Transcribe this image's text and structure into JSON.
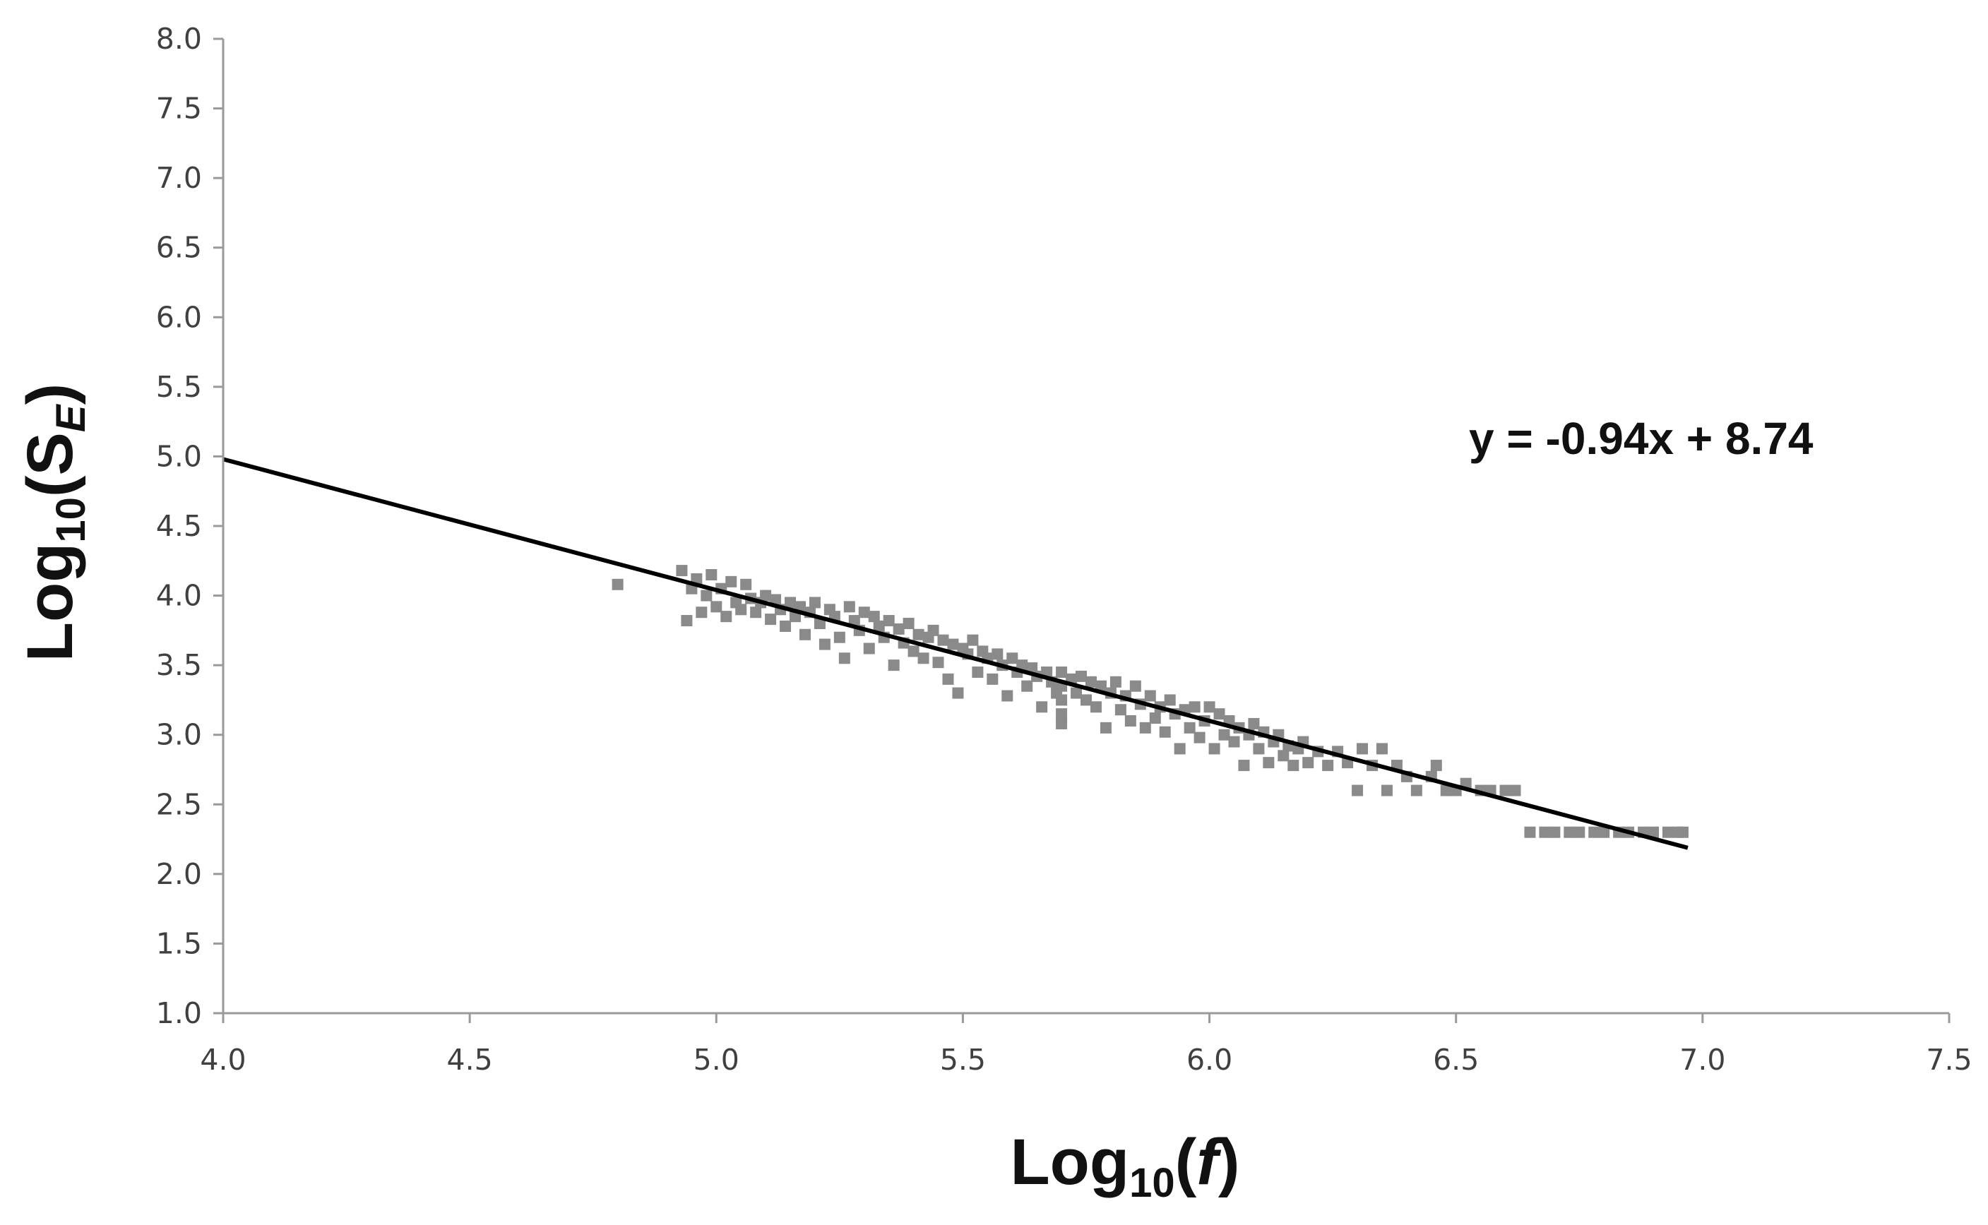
{
  "chart_data": {
    "type": "scatter",
    "xlabel": {
      "prefix": "Log",
      "sub": "10",
      "open": "(",
      "var": "f",
      "close": ")"
    },
    "ylabel": {
      "prefix": "Log",
      "sub": "10",
      "open": "(S",
      "var_sub": "E",
      "close": ")"
    },
    "xlim": [
      4.0,
      7.5
    ],
    "ylim": [
      1.0,
      8.0
    ],
    "xticks": [
      "4.0",
      "4.5",
      "5.0",
      "5.5",
      "6.0",
      "6.5",
      "7.0",
      "7.5"
    ],
    "yticks": [
      "1.0",
      "1.5",
      "2.0",
      "2.5",
      "3.0",
      "3.5",
      "4.0",
      "4.5",
      "5.0",
      "5.5",
      "6.0",
      "6.5",
      "7.0",
      "7.5",
      "8.0"
    ],
    "grid": false,
    "trendline": {
      "slope": -0.94,
      "intercept": 8.74,
      "x_range": [
        4.0,
        6.97
      ],
      "equation": "y = -0.94x + 8.74"
    },
    "colors": {
      "points": "#8a8a8a",
      "line": "#000000",
      "axis": "#9a9a9a"
    },
    "points": [
      [
        4.8,
        4.08
      ],
      [
        4.93,
        4.18
      ],
      [
        4.94,
        3.82
      ],
      [
        4.95,
        4.05
      ],
      [
        4.96,
        4.12
      ],
      [
        4.97,
        3.88
      ],
      [
        4.98,
        4.0
      ],
      [
        4.99,
        4.15
      ],
      [
        5.0,
        3.92
      ],
      [
        5.01,
        4.05
      ],
      [
        5.02,
        3.85
      ],
      [
        5.03,
        4.1
      ],
      [
        5.04,
        3.95
      ],
      [
        5.05,
        3.9
      ],
      [
        5.06,
        4.08
      ],
      [
        5.07,
        3.98
      ],
      [
        5.08,
        3.88
      ],
      [
        5.09,
        3.95
      ],
      [
        5.1,
        4.0
      ],
      [
        5.11,
        3.83
      ],
      [
        5.12,
        3.97
      ],
      [
        5.13,
        3.9
      ],
      [
        5.14,
        3.78
      ],
      [
        5.15,
        3.95
      ],
      [
        5.16,
        3.85
      ],
      [
        5.17,
        3.92
      ],
      [
        5.18,
        3.72
      ],
      [
        5.19,
        3.88
      ],
      [
        5.2,
        3.95
      ],
      [
        5.21,
        3.8
      ],
      [
        5.22,
        3.65
      ],
      [
        5.23,
        3.9
      ],
      [
        5.24,
        3.85
      ],
      [
        5.25,
        3.7
      ],
      [
        5.26,
        3.55
      ],
      [
        5.27,
        3.92
      ],
      [
        5.28,
        3.82
      ],
      [
        5.29,
        3.75
      ],
      [
        5.3,
        3.88
      ],
      [
        5.31,
        3.62
      ],
      [
        5.32,
        3.85
      ],
      [
        5.33,
        3.78
      ],
      [
        5.34,
        3.7
      ],
      [
        5.35,
        3.82
      ],
      [
        5.36,
        3.5
      ],
      [
        5.37,
        3.76
      ],
      [
        5.38,
        3.66
      ],
      [
        5.39,
        3.8
      ],
      [
        5.4,
        3.6
      ],
      [
        5.41,
        3.72
      ],
      [
        5.42,
        3.55
      ],
      [
        5.43,
        3.7
      ],
      [
        5.44,
        3.75
      ],
      [
        5.45,
        3.52
      ],
      [
        5.46,
        3.68
      ],
      [
        5.47,
        3.4
      ],
      [
        5.48,
        3.65
      ],
      [
        5.49,
        3.3
      ],
      [
        5.5,
        3.62
      ],
      [
        5.51,
        3.58
      ],
      [
        5.52,
        3.68
      ],
      [
        5.53,
        3.45
      ],
      [
        5.54,
        3.6
      ],
      [
        5.55,
        3.55
      ],
      [
        5.56,
        3.4
      ],
      [
        5.57,
        3.58
      ],
      [
        5.58,
        3.5
      ],
      [
        5.59,
        3.28
      ],
      [
        5.6,
        3.55
      ],
      [
        5.61,
        3.45
      ],
      [
        5.62,
        3.5
      ],
      [
        5.63,
        3.35
      ],
      [
        5.64,
        3.48
      ],
      [
        5.65,
        3.42
      ],
      [
        5.66,
        3.2
      ],
      [
        5.67,
        3.45
      ],
      [
        5.68,
        3.38
      ],
      [
        5.69,
        3.3
      ],
      [
        5.7,
        3.45
      ],
      [
        5.7,
        3.35
      ],
      [
        5.7,
        3.25
      ],
      [
        5.7,
        3.15
      ],
      [
        5.7,
        3.08
      ],
      [
        5.72,
        3.4
      ],
      [
        5.73,
        3.3
      ],
      [
        5.74,
        3.42
      ],
      [
        5.75,
        3.25
      ],
      [
        5.76,
        3.38
      ],
      [
        5.77,
        3.2
      ],
      [
        5.78,
        3.35
      ],
      [
        5.79,
        3.05
      ],
      [
        5.8,
        3.3
      ],
      [
        5.81,
        3.38
      ],
      [
        5.82,
        3.18
      ],
      [
        5.83,
        3.28
      ],
      [
        5.84,
        3.1
      ],
      [
        5.85,
        3.35
      ],
      [
        5.86,
        3.22
      ],
      [
        5.87,
        3.05
      ],
      [
        5.88,
        3.28
      ],
      [
        5.89,
        3.12
      ],
      [
        5.9,
        3.2
      ],
      [
        5.91,
        3.02
      ],
      [
        5.92,
        3.25
      ],
      [
        5.93,
        3.15
      ],
      [
        5.94,
        2.9
      ],
      [
        5.95,
        3.18
      ],
      [
        5.96,
        3.05
      ],
      [
        5.97,
        3.2
      ],
      [
        5.98,
        2.98
      ],
      [
        5.99,
        3.1
      ],
      [
        6.0,
        3.2
      ],
      [
        6.01,
        2.9
      ],
      [
        6.02,
        3.15
      ],
      [
        6.03,
        3.0
      ],
      [
        6.04,
        3.1
      ],
      [
        6.05,
        2.95
      ],
      [
        6.06,
        3.05
      ],
      [
        6.07,
        2.78
      ],
      [
        6.08,
        3.0
      ],
      [
        6.09,
        3.08
      ],
      [
        6.1,
        2.9
      ],
      [
        6.11,
        3.02
      ],
      [
        6.12,
        2.8
      ],
      [
        6.13,
        2.95
      ],
      [
        6.14,
        3.0
      ],
      [
        6.15,
        2.85
      ],
      [
        6.16,
        2.92
      ],
      [
        6.17,
        2.78
      ],
      [
        6.18,
        2.9
      ],
      [
        6.19,
        2.95
      ],
      [
        6.2,
        2.8
      ],
      [
        6.22,
        2.88
      ],
      [
        6.24,
        2.78
      ],
      [
        6.26,
        2.88
      ],
      [
        6.28,
        2.8
      ],
      [
        6.3,
        2.6
      ],
      [
        6.31,
        2.9
      ],
      [
        6.33,
        2.78
      ],
      [
        6.35,
        2.9
      ],
      [
        6.36,
        2.6
      ],
      [
        6.38,
        2.78
      ],
      [
        6.4,
        2.7
      ],
      [
        6.42,
        2.6
      ],
      [
        6.45,
        2.7
      ],
      [
        6.46,
        2.78
      ],
      [
        6.48,
        2.6
      ],
      [
        6.5,
        2.6
      ],
      [
        6.52,
        2.65
      ],
      [
        6.55,
        2.6
      ],
      [
        6.57,
        2.6
      ],
      [
        6.6,
        2.6
      ],
      [
        6.62,
        2.6
      ],
      [
        6.65,
        2.3
      ],
      [
        6.68,
        2.3
      ],
      [
        6.7,
        2.3
      ],
      [
        6.73,
        2.3
      ],
      [
        6.75,
        2.3
      ],
      [
        6.78,
        2.3
      ],
      [
        6.8,
        2.3
      ],
      [
        6.83,
        2.3
      ],
      [
        6.85,
        2.3
      ],
      [
        6.88,
        2.3
      ],
      [
        6.9,
        2.3
      ],
      [
        6.93,
        2.3
      ],
      [
        6.95,
        2.3
      ],
      [
        6.96,
        2.3
      ]
    ]
  }
}
